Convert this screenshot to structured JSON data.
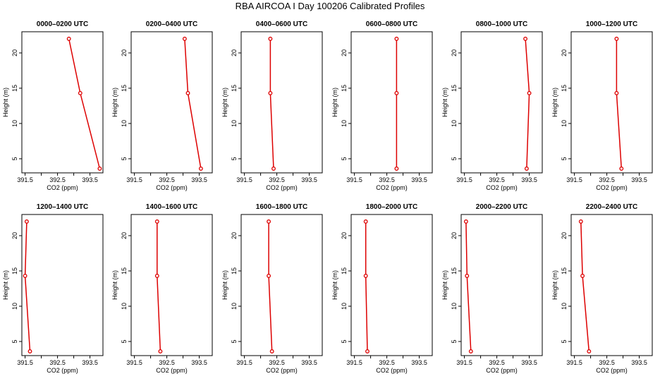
{
  "title": "RBA AIRCOA I  Day 100206  Calibrated Profiles",
  "colors": {
    "line": "#dd0000",
    "axis": "#000000"
  },
  "chart_data": [
    {
      "type": "line",
      "title": "0000–0200 UTC",
      "xlabel": "CO2 (ppm)",
      "ylabel": "Height (m)",
      "xlim": [
        391.4,
        393.9
      ],
      "ylim": [
        3,
        23
      ],
      "xticks": [
        391.5,
        392.5,
        393.5
      ],
      "yticks": [
        5,
        10,
        15,
        20
      ],
      "series": [
        {
          "x": [
            392.85,
            393.2,
            393.8
          ],
          "y": [
            22,
            14.3,
            3.6
          ]
        }
      ]
    },
    {
      "type": "line",
      "title": "0200–0400 UTC",
      "xlabel": "CO2 (ppm)",
      "ylabel": "Height (m)",
      "xlim": [
        391.4,
        393.9
      ],
      "ylim": [
        3,
        23
      ],
      "xticks": [
        391.5,
        392.5,
        393.5
      ],
      "yticks": [
        5,
        10,
        15,
        20
      ],
      "series": [
        {
          "x": [
            393.05,
            393.15,
            393.55
          ],
          "y": [
            22,
            14.3,
            3.6
          ]
        }
      ]
    },
    {
      "type": "line",
      "title": "0400–0600 UTC",
      "xlabel": "CO2 (ppm)",
      "ylabel": "Height (m)",
      "xlim": [
        391.4,
        393.9
      ],
      "ylim": [
        3,
        23
      ],
      "xticks": [
        391.5,
        392.5,
        393.5
      ],
      "yticks": [
        5,
        10,
        15,
        20
      ],
      "series": [
        {
          "x": [
            392.3,
            392.3,
            392.4
          ],
          "y": [
            22,
            14.3,
            3.6
          ]
        }
      ]
    },
    {
      "type": "line",
      "title": "0600–0800 UTC",
      "xlabel": "CO2 (ppm)",
      "ylabel": "Height (m)",
      "xlim": [
        391.4,
        393.9
      ],
      "ylim": [
        3,
        23
      ],
      "xticks": [
        391.5,
        392.5,
        393.5
      ],
      "yticks": [
        5,
        10,
        15,
        20
      ],
      "series": [
        {
          "x": [
            392.8,
            392.8,
            392.8
          ],
          "y": [
            22,
            14.3,
            3.6
          ]
        }
      ]
    },
    {
      "type": "line",
      "title": "0800–1000 UTC",
      "xlabel": "CO2 (ppm)",
      "ylabel": "Height (m)",
      "xlim": [
        391.4,
        393.9
      ],
      "ylim": [
        3,
        23
      ],
      "xticks": [
        391.5,
        392.5,
        393.5
      ],
      "yticks": [
        5,
        10,
        15,
        20
      ],
      "series": [
        {
          "x": [
            393.38,
            393.5,
            393.42
          ],
          "y": [
            22,
            14.3,
            3.6
          ]
        }
      ]
    },
    {
      "type": "line",
      "title": "1000–1200 UTC",
      "xlabel": "CO2 (ppm)",
      "ylabel": "Height (m)",
      "xlim": [
        391.4,
        393.9
      ],
      "ylim": [
        3,
        23
      ],
      "xticks": [
        391.5,
        392.5,
        393.5
      ],
      "yticks": [
        5,
        10,
        15,
        20
      ],
      "series": [
        {
          "x": [
            392.8,
            392.8,
            392.95
          ],
          "y": [
            22,
            14.3,
            3.6
          ]
        }
      ]
    },
    {
      "type": "line",
      "title": "1200–1400 UTC",
      "xlabel": "CO2 (ppm)",
      "ylabel": "Height (m)",
      "xlim": [
        391.4,
        393.9
      ],
      "ylim": [
        3,
        23
      ],
      "xticks": [
        391.5,
        392.5,
        393.5
      ],
      "yticks": [
        5,
        10,
        15,
        20
      ],
      "series": [
        {
          "x": [
            391.55,
            391.5,
            391.65
          ],
          "y": [
            22,
            14.3,
            3.6
          ]
        }
      ]
    },
    {
      "type": "line",
      "title": "1400–1600 UTC",
      "xlabel": "CO2 (ppm)",
      "ylabel": "Height (m)",
      "xlim": [
        391.4,
        393.9
      ],
      "ylim": [
        3,
        23
      ],
      "xticks": [
        391.5,
        392.5,
        393.5
      ],
      "yticks": [
        5,
        10,
        15,
        20
      ],
      "series": [
        {
          "x": [
            392.2,
            392.2,
            392.3
          ],
          "y": [
            22,
            14.3,
            3.6
          ]
        }
      ]
    },
    {
      "type": "line",
      "title": "1600–1800 UTC",
      "xlabel": "CO2 (ppm)",
      "ylabel": "Height (m)",
      "xlim": [
        391.4,
        393.9
      ],
      "ylim": [
        3,
        23
      ],
      "xticks": [
        391.5,
        392.5,
        393.5
      ],
      "yticks": [
        5,
        10,
        15,
        20
      ],
      "series": [
        {
          "x": [
            392.25,
            392.25,
            392.35
          ],
          "y": [
            22,
            14.3,
            3.6
          ]
        }
      ]
    },
    {
      "type": "line",
      "title": "1800–2000 UTC",
      "xlabel": "CO2 (ppm)",
      "ylabel": "Height (m)",
      "xlim": [
        391.4,
        393.9
      ],
      "ylim": [
        3,
        23
      ],
      "xticks": [
        391.5,
        392.5,
        393.5
      ],
      "yticks": [
        5,
        10,
        15,
        20
      ],
      "series": [
        {
          "x": [
            391.85,
            391.85,
            391.9
          ],
          "y": [
            22,
            14.3,
            3.6
          ]
        }
      ]
    },
    {
      "type": "line",
      "title": "2000–2200 UTC",
      "xlabel": "CO2 (ppm)",
      "ylabel": "Height (m)",
      "xlim": [
        391.4,
        393.9
      ],
      "ylim": [
        3,
        23
      ],
      "xticks": [
        391.5,
        392.5,
        393.5
      ],
      "yticks": [
        5,
        10,
        15,
        20
      ],
      "series": [
        {
          "x": [
            391.55,
            391.58,
            391.7
          ],
          "y": [
            22,
            14.3,
            3.6
          ]
        }
      ]
    },
    {
      "type": "line",
      "title": "2200–2400 UTC",
      "xlabel": "CO2 (ppm)",
      "ylabel": "Height (m)",
      "xlim": [
        391.4,
        393.9
      ],
      "ylim": [
        3,
        23
      ],
      "xticks": [
        391.5,
        392.5,
        393.5
      ],
      "yticks": [
        5,
        10,
        15,
        20
      ],
      "series": [
        {
          "x": [
            391.7,
            391.75,
            391.95
          ],
          "y": [
            22,
            14.3,
            3.6
          ]
        }
      ]
    }
  ]
}
